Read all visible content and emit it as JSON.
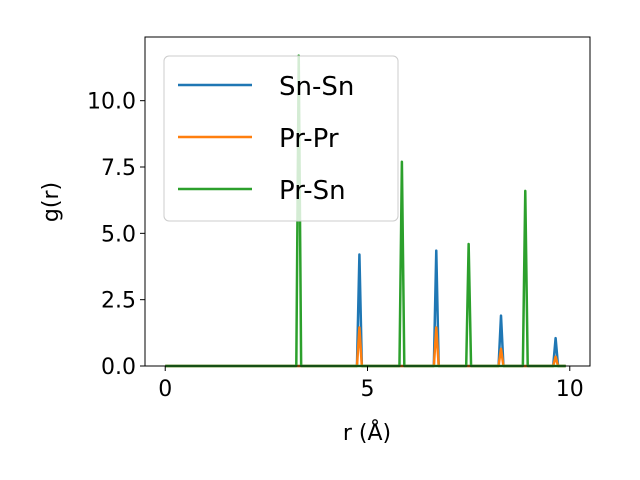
{
  "chart_data": {
    "type": "line",
    "title": "",
    "xlabel": "r (Å)",
    "ylabel": "g(r)",
    "xlim": [
      -0.5,
      10.5
    ],
    "ylim": [
      0,
      12.4
    ],
    "x_ticks": [
      0,
      5,
      10
    ],
    "x_tick_labels": [
      "0",
      "5",
      "10"
    ],
    "y_ticks": [
      0,
      2.5,
      5,
      7.5,
      10
    ],
    "y_tick_labels": [
      "0.0",
      "2.5",
      "5.0",
      "7.5",
      "10.0"
    ],
    "grid": false,
    "legend_position": "top-left",
    "x_range": [
      0,
      9.9
    ],
    "series": [
      {
        "name": "Sn-Sn",
        "color": "#1f77b4",
        "peaks": [
          {
            "x": 4.8,
            "y": 4.2
          },
          {
            "x": 6.7,
            "y": 4.35
          },
          {
            "x": 8.3,
            "y": 1.9
          },
          {
            "x": 9.65,
            "y": 1.05
          }
        ]
      },
      {
        "name": "Pr-Pr",
        "color": "#ff7f0e",
        "peaks": [
          {
            "x": 4.8,
            "y": 1.45
          },
          {
            "x": 6.7,
            "y": 1.45
          },
          {
            "x": 8.3,
            "y": 0.65
          },
          {
            "x": 9.65,
            "y": 0.35
          }
        ]
      },
      {
        "name": "Pr-Sn",
        "color": "#2ca02c",
        "peaks": [
          {
            "x": 3.3,
            "y": 11.7
          },
          {
            "x": 5.85,
            "y": 7.7
          },
          {
            "x": 7.5,
            "y": 4.6
          },
          {
            "x": 8.9,
            "y": 6.6
          }
        ]
      }
    ]
  }
}
